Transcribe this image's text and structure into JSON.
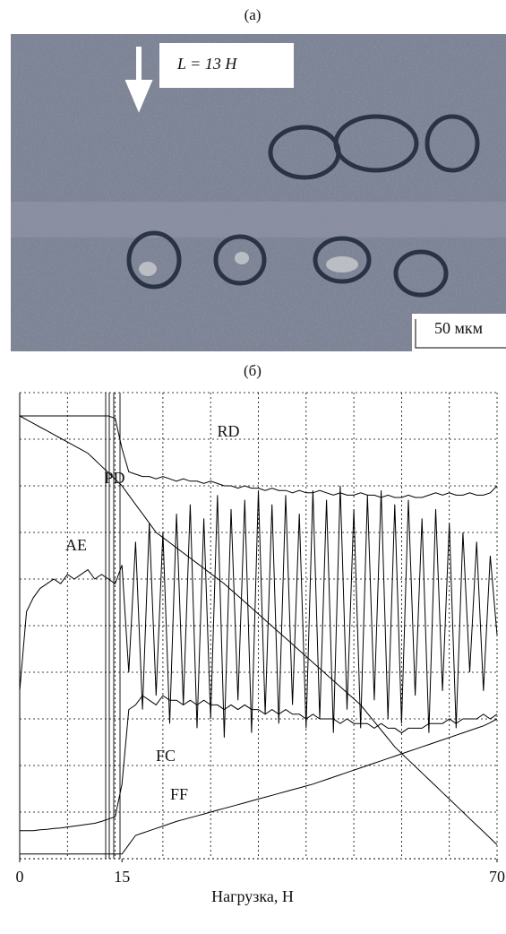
{
  "panel_a": {
    "label": "(a)",
    "load_label": "L = 13 Н",
    "scale_label": "50 мкм"
  },
  "chart_data": {
    "type": "line",
    "title": "(б)",
    "xlabel": "Нагрузка, Н",
    "x": [
      0,
      1,
      2,
      3,
      4,
      5,
      6,
      7,
      8,
      9,
      10,
      11,
      12,
      13,
      14,
      15,
      16,
      17,
      18,
      19,
      20,
      21,
      22,
      23,
      24,
      25,
      26,
      27,
      28,
      29,
      30,
      31,
      32,
      33,
      34,
      35,
      36,
      37,
      38,
      39,
      40,
      41,
      42,
      43,
      44,
      45,
      46,
      47,
      48,
      49,
      50,
      51,
      52,
      53,
      54,
      55,
      56,
      57,
      58,
      59,
      60,
      61,
      62,
      63,
      64,
      65,
      66,
      67,
      68,
      69,
      70
    ],
    "xlim": [
      0,
      70
    ],
    "xticks": [
      0,
      15,
      70
    ],
    "ylim": [
      0,
      10
    ],
    "grid": true,
    "series": [
      {
        "name": "RD",
        "color": "#000000",
        "values": [
          9.5,
          9.5,
          9.5,
          9.5,
          9.5,
          9.5,
          9.5,
          9.5,
          9.5,
          9.5,
          9.5,
          9.5,
          9.5,
          9.5,
          9.45,
          8.8,
          8.3,
          8.25,
          8.2,
          8.2,
          8.15,
          8.2,
          8.15,
          8.1,
          8.15,
          8.1,
          8.1,
          8.05,
          8.1,
          8.05,
          8.0,
          8.0,
          7.95,
          8.0,
          7.95,
          7.95,
          7.9,
          7.95,
          7.9,
          7.9,
          7.85,
          7.9,
          7.85,
          7.85,
          7.9,
          7.85,
          7.8,
          7.85,
          7.8,
          7.8,
          7.85,
          7.8,
          7.8,
          7.75,
          7.8,
          7.75,
          7.75,
          7.8,
          7.75,
          7.75,
          7.8,
          7.85,
          7.8,
          7.85,
          7.8,
          7.8,
          7.85,
          7.8,
          7.8,
          7.85,
          8.0
        ]
      },
      {
        "name": "PD",
        "color": "#000000",
        "values": [
          9.5,
          9.42,
          9.34,
          9.26,
          9.18,
          9.1,
          9.02,
          8.94,
          8.86,
          8.78,
          8.7,
          8.56,
          8.42,
          8.28,
          8.14,
          8.0,
          7.8,
          7.6,
          7.4,
          7.2,
          7.0,
          6.89,
          6.78,
          6.67,
          6.56,
          6.45,
          6.34,
          6.23,
          6.12,
          6.01,
          5.9,
          5.77,
          5.64,
          5.51,
          5.38,
          5.25,
          5.12,
          4.99,
          4.86,
          4.73,
          4.6,
          4.47,
          4.34,
          4.21,
          4.08,
          3.95,
          3.82,
          3.69,
          3.56,
          3.43,
          3.3,
          3.12,
          2.94,
          2.76,
          2.58,
          2.4,
          2.26,
          2.12,
          1.98,
          1.84,
          1.7,
          1.56,
          1.42,
          1.28,
          1.14,
          1.0,
          0.86,
          0.72,
          0.58,
          0.44,
          0.3
        ]
      },
      {
        "name": "AE",
        "color": "#000000",
        "values": [
          3.6,
          5.3,
          5.6,
          5.8,
          5.9,
          6.0,
          5.9,
          6.1,
          6.0,
          6.1,
          6.2,
          6.0,
          6.1,
          6.0,
          5.9,
          6.3,
          4.0,
          6.8,
          3.2,
          7.2,
          3.5,
          7.0,
          2.9,
          7.4,
          3.3,
          7.6,
          2.8,
          7.3,
          3.0,
          7.8,
          2.6,
          7.5,
          3.4,
          7.7,
          2.7,
          7.9,
          3.1,
          7.6,
          2.9,
          7.8,
          3.3,
          7.4,
          2.8,
          7.9,
          3.0,
          7.7,
          2.7,
          8.0,
          3.2,
          7.5,
          2.8,
          7.8,
          3.4,
          7.9,
          3.0,
          7.6,
          2.9,
          7.7,
          3.5,
          7.3,
          2.7,
          7.5,
          3.6,
          7.2,
          2.8,
          7.0,
          4.0,
          6.8,
          3.6,
          6.5,
          4.8
        ]
      },
      {
        "name": "FC",
        "color": "#000000",
        "values": [
          0.6,
          0.6,
          0.6,
          0.62,
          0.63,
          0.65,
          0.66,
          0.68,
          0.7,
          0.72,
          0.74,
          0.76,
          0.8,
          0.85,
          0.9,
          1.6,
          3.2,
          3.3,
          3.5,
          3.4,
          3.3,
          3.5,
          3.4,
          3.4,
          3.3,
          3.4,
          3.3,
          3.4,
          3.3,
          3.3,
          3.2,
          3.3,
          3.2,
          3.3,
          3.2,
          3.2,
          3.1,
          3.2,
          3.1,
          3.2,
          3.1,
          3.1,
          3.0,
          3.1,
          3.0,
          3.0,
          3.0,
          2.9,
          3.0,
          2.9,
          2.9,
          2.9,
          2.8,
          2.9,
          2.8,
          2.8,
          2.7,
          2.8,
          2.8,
          2.8,
          2.9,
          2.9,
          2.9,
          3.0,
          2.9,
          3.0,
          3.0,
          3.0,
          3.1,
          3.0,
          3.1
        ]
      },
      {
        "name": "FF",
        "color": "#000000",
        "values": [
          0.1,
          0.1,
          0.1,
          0.1,
          0.1,
          0.1,
          0.1,
          0.1,
          0.1,
          0.1,
          0.1,
          0.1,
          0.1,
          0.1,
          0.1,
          0.1,
          0.3,
          0.5,
          0.55,
          0.6,
          0.65,
          0.7,
          0.75,
          0.8,
          0.84,
          0.88,
          0.92,
          0.96,
          1.0,
          1.04,
          1.08,
          1.12,
          1.16,
          1.2,
          1.24,
          1.28,
          1.32,
          1.36,
          1.4,
          1.44,
          1.48,
          1.52,
          1.56,
          1.6,
          1.65,
          1.7,
          1.75,
          1.8,
          1.85,
          1.9,
          1.95,
          2.0,
          2.05,
          2.1,
          2.15,
          2.2,
          2.25,
          2.3,
          2.35,
          2.4,
          2.45,
          2.5,
          2.55,
          2.6,
          2.65,
          2.7,
          2.75,
          2.8,
          2.85,
          2.92,
          3.0
        ]
      }
    ]
  }
}
